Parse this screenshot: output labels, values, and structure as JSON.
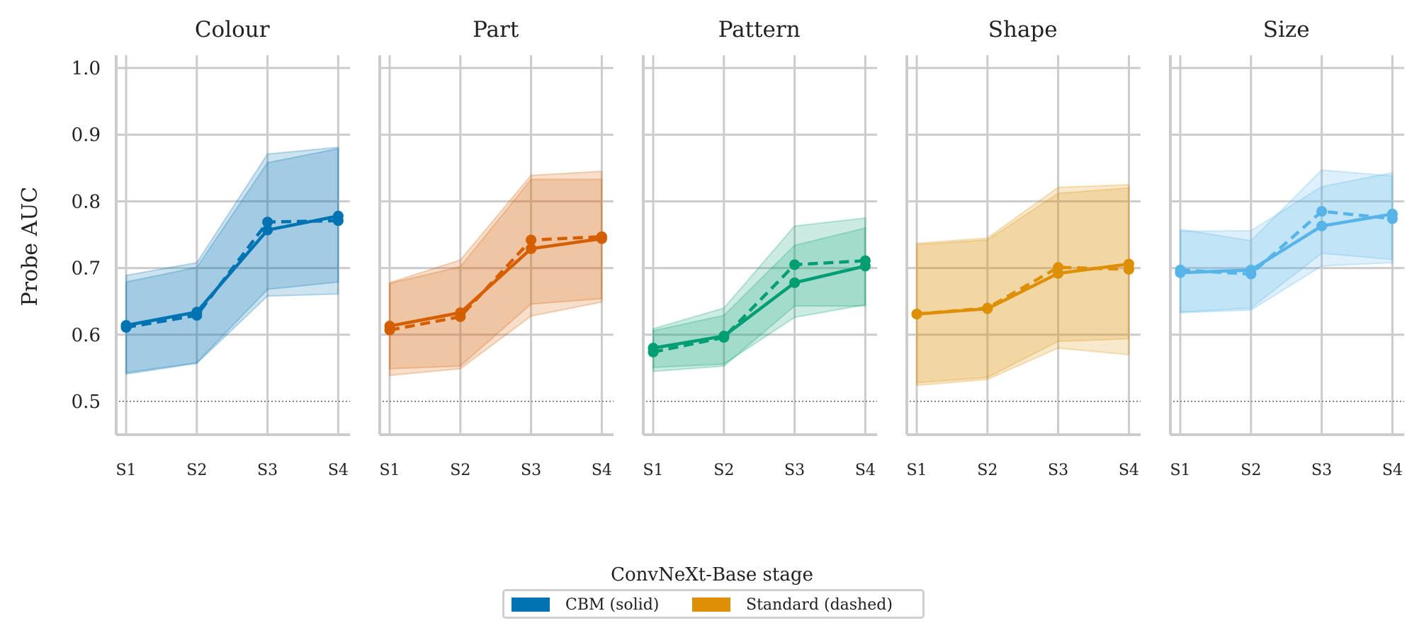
{
  "chart_data": {
    "type": "line",
    "ylabel": "Probe AUC",
    "ylim": [
      0.45,
      1.02
    ],
    "yticks": [
      "0.5",
      "0.6",
      "0.7",
      "0.8",
      "0.9",
      "1.0"
    ],
    "x": [
      "S1",
      "S2",
      "S3",
      "S4"
    ],
    "chance_level": 0.5,
    "grid": true,
    "panels": [
      {
        "title": "Colour",
        "color": "#0173b2",
        "series": [
          {
            "name": "CBM (solid)",
            "values": [
              0.614,
              0.634,
              0.757,
              0.778
            ],
            "band_low": [
              0.543,
              0.558,
              0.668,
              0.679
            ],
            "band_high": [
              0.679,
              0.701,
              0.858,
              0.879
            ]
          },
          {
            "name": "Standard (dashed)",
            "values": [
              0.611,
              0.629,
              0.769,
              0.771
            ],
            "band_low": [
              0.541,
              0.557,
              0.658,
              0.661
            ],
            "band_high": [
              0.689,
              0.708,
              0.871,
              0.881
            ]
          }
        ]
      },
      {
        "title": "Part",
        "color": "#d55e00",
        "series": [
          {
            "name": "CBM (solid)",
            "values": [
              0.613,
              0.633,
              0.729,
              0.744
            ],
            "band_low": [
              0.549,
              0.553,
              0.646,
              0.654
            ],
            "band_high": [
              0.677,
              0.702,
              0.833,
              0.833
            ]
          },
          {
            "name": "Standard (dashed)",
            "values": [
              0.607,
              0.627,
              0.742,
              0.747
            ],
            "band_low": [
              0.539,
              0.549,
              0.628,
              0.649
            ],
            "band_high": [
              0.678,
              0.712,
              0.839,
              0.845
            ]
          }
        ]
      },
      {
        "title": "Pattern",
        "color": "#029e73",
        "series": [
          {
            "name": "CBM (solid)",
            "values": [
              0.58,
              0.598,
              0.678,
              0.703
            ],
            "band_low": [
              0.551,
              0.556,
              0.626,
              0.645
            ],
            "band_high": [
              0.606,
              0.629,
              0.734,
              0.76
            ]
          },
          {
            "name": "Standard (dashed)",
            "values": [
              0.574,
              0.596,
              0.705,
              0.711
            ],
            "band_low": [
              0.545,
              0.553,
              0.643,
              0.643
            ],
            "band_high": [
              0.609,
              0.64,
              0.763,
              0.775
            ]
          }
        ]
      },
      {
        "title": "Shape",
        "color": "#de8f05",
        "series": [
          {
            "name": "CBM (solid)",
            "values": [
              0.631,
              0.639,
              0.692,
              0.706
            ],
            "band_low": [
              0.528,
              0.536,
              0.59,
              0.594
            ],
            "band_high": [
              0.735,
              0.742,
              0.812,
              0.82
            ]
          },
          {
            "name": "Standard (dashed)",
            "values": [
              0.631,
              0.64,
              0.701,
              0.698
            ],
            "band_low": [
              0.524,
              0.533,
              0.58,
              0.57
            ],
            "band_high": [
              0.737,
              0.745,
              0.821,
              0.825
            ]
          }
        ]
      },
      {
        "title": "Size",
        "color": "#56b4e9",
        "series": [
          {
            "name": "CBM (solid)",
            "values": [
              0.693,
              0.697,
              0.763,
              0.781
            ],
            "band_low": [
              0.633,
              0.637,
              0.703,
              0.708
            ],
            "band_high": [
              0.755,
              0.756,
              0.822,
              0.843
            ]
          },
          {
            "name": "Standard (dashed)",
            "values": [
              0.697,
              0.691,
              0.785,
              0.774
            ],
            "band_low": [
              0.634,
              0.64,
              0.722,
              0.713
            ],
            "band_high": [
              0.758,
              0.741,
              0.847,
              0.838
            ]
          }
        ]
      }
    ],
    "legend": {
      "title": "ConvNeXt-Base stage",
      "placement": "bottom-center",
      "entries": [
        {
          "label": "CBM (solid)",
          "color": "#0173b2"
        },
        {
          "label": "Standard (dashed)",
          "color": "#de8f05"
        }
      ]
    }
  }
}
